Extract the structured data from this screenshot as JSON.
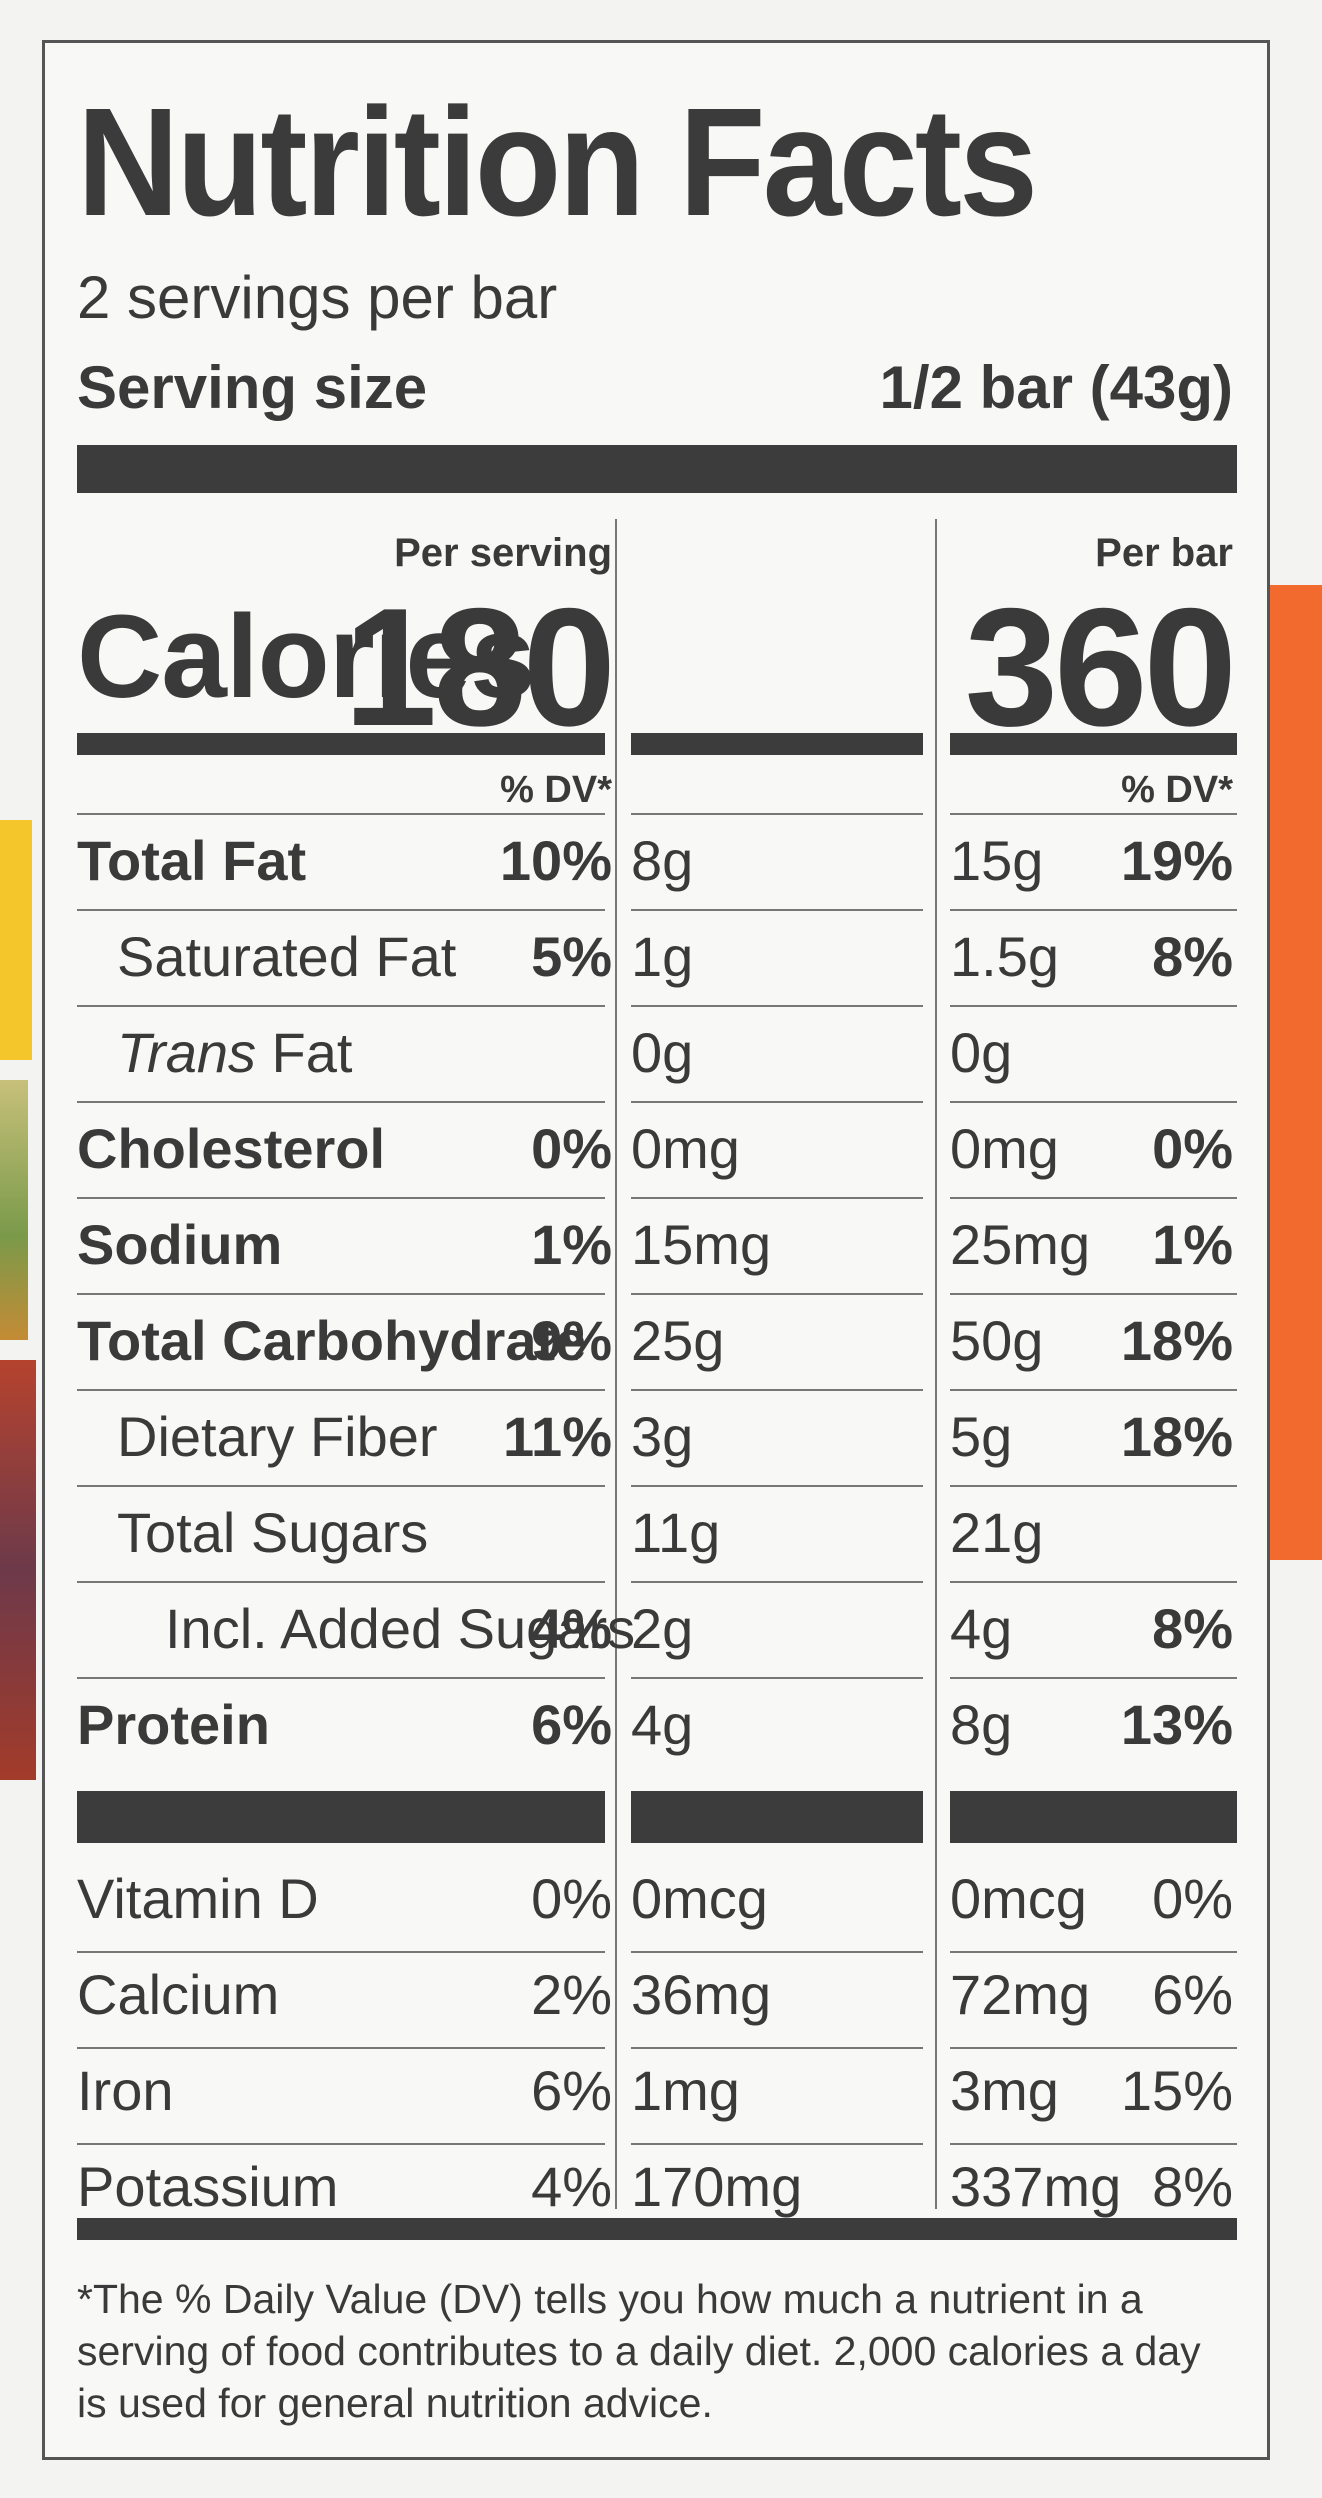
{
  "title": "Nutrition Facts",
  "servings_per_container": "2 servings per bar",
  "serving_size": {
    "label": "Serving size",
    "value": "1/2 bar (43g)"
  },
  "columns": [
    {
      "heading": "Per serving",
      "calories": "180",
      "dv_label": "% DV*"
    },
    {
      "heading": "Per bar",
      "calories": "360",
      "dv_label": "% DV*"
    }
  ],
  "calories_label": "Calories",
  "nutrients": [
    {
      "label": "Total Fat",
      "bold": true,
      "indent": 0,
      "serving_amount": "8g",
      "serving_dv": "10%",
      "bar_amount": "15g",
      "bar_dv": "19%"
    },
    {
      "label": "Saturated Fat",
      "bold": false,
      "indent": 1,
      "serving_amount": "1g",
      "serving_dv": "5%",
      "bar_amount": "1.5g",
      "bar_dv": "8%"
    },
    {
      "label_italic": "Trans",
      "label": " Fat",
      "bold": false,
      "indent": 1,
      "serving_amount": "0g",
      "serving_dv": "",
      "bar_amount": "0g",
      "bar_dv": ""
    },
    {
      "label": "Cholesterol",
      "bold": true,
      "indent": 0,
      "serving_amount": "0mg",
      "serving_dv": "0%",
      "bar_amount": "0mg",
      "bar_dv": "0%"
    },
    {
      "label": "Sodium",
      "bold": true,
      "indent": 0,
      "serving_amount": "15mg",
      "serving_dv": "1%",
      "bar_amount": "25mg",
      "bar_dv": "1%"
    },
    {
      "label": "Total Carbohydrate",
      "bold": true,
      "indent": 0,
      "serving_amount": "25g",
      "serving_dv": "9%",
      "bar_amount": "50g",
      "bar_dv": "18%"
    },
    {
      "label": "Dietary Fiber",
      "bold": false,
      "indent": 1,
      "serving_amount": "3g",
      "serving_dv": "11%",
      "bar_amount": "5g",
      "bar_dv": "18%"
    },
    {
      "label": "Total Sugars",
      "bold": false,
      "indent": 1,
      "serving_amount": "11g",
      "serving_dv": "",
      "bar_amount": "21g",
      "bar_dv": ""
    },
    {
      "label": "Incl. Added Sugars",
      "bold": false,
      "indent": 2,
      "serving_amount": "2g",
      "serving_dv": "4%",
      "bar_amount": "4g",
      "bar_dv": "8%"
    },
    {
      "label": "Protein",
      "bold": true,
      "indent": 0,
      "serving_amount": "4g",
      "serving_dv": "6%",
      "bar_amount": "8g",
      "bar_dv": "13%"
    }
  ],
  "vitamins": [
    {
      "label": "Vitamin D",
      "serving_amount": "0mcg",
      "serving_dv": "0%",
      "bar_amount": "0mcg",
      "bar_dv": "0%"
    },
    {
      "label": "Calcium",
      "serving_amount": "36mg",
      "serving_dv": "2%",
      "bar_amount": "72mg",
      "bar_dv": "6%"
    },
    {
      "label": "Iron",
      "serving_amount": "1mg",
      "serving_dv": "6%",
      "bar_amount": "3mg",
      "bar_dv": "15%"
    },
    {
      "label": "Potassium",
      "serving_amount": "170mg",
      "serving_dv": "4%",
      "bar_amount": "337mg",
      "bar_dv": "8%"
    }
  ],
  "footnote": "*The % Daily Value (DV) tells you how much a nutrient in a serving of food contributes to a daily diet. 2,000 calories a day is used for general nutrition advice.",
  "colors": {
    "text": "#3a3a3a",
    "rule": "#3c3c3c",
    "accent_orange": "#f26a2e"
  }
}
